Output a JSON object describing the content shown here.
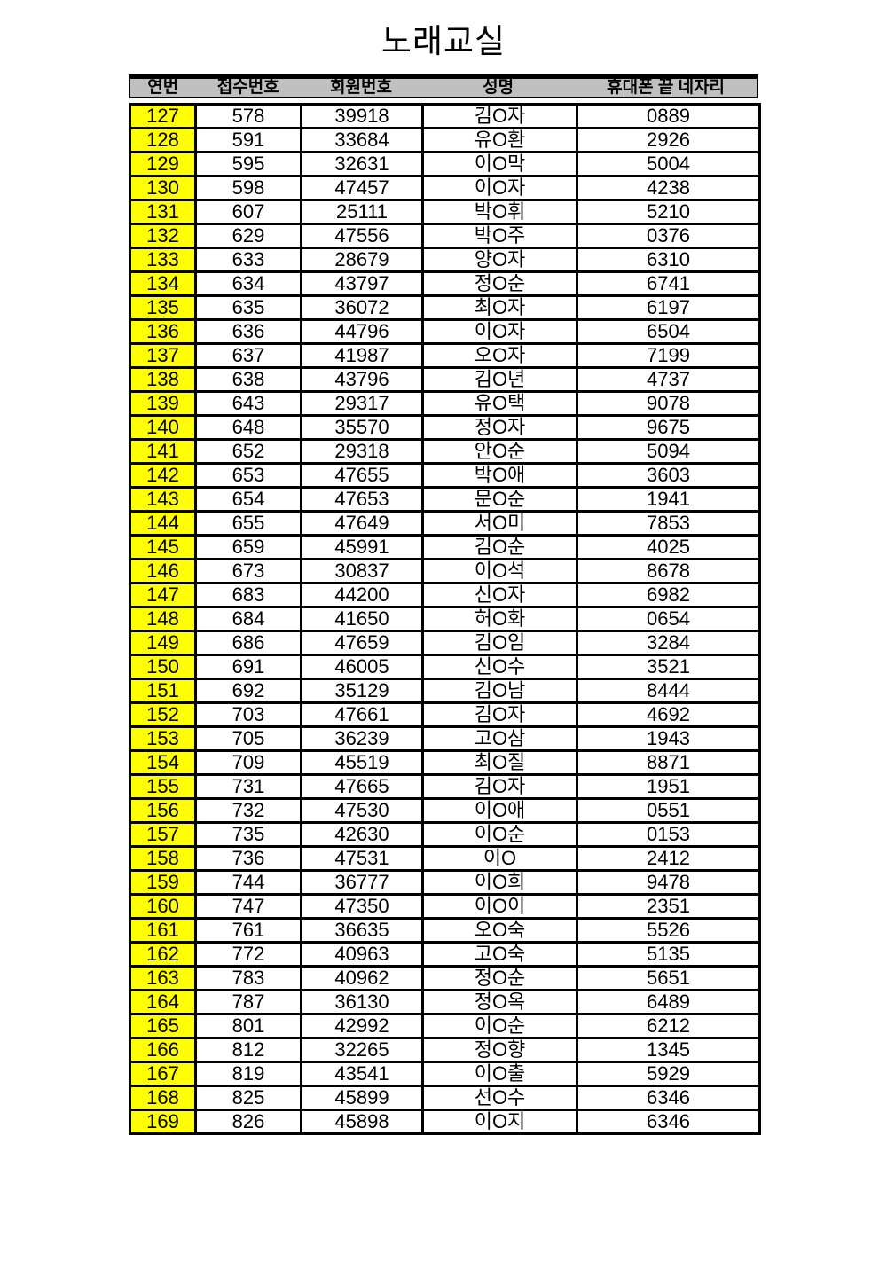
{
  "title": "노래교실",
  "colors": {
    "header_bg": "#c0c0c0",
    "serial_bg": "#ffff00",
    "border": "#000000",
    "text": "#000000"
  },
  "table": {
    "headers": [
      "연번",
      "접수번호",
      "회원번호",
      "성명",
      "휴대폰 끝 네자리"
    ],
    "rows": [
      {
        "no": "127",
        "receipt": "578",
        "member": "39918",
        "name": "김O자",
        "phone4": "0889"
      },
      {
        "no": "128",
        "receipt": "591",
        "member": "33684",
        "name": "유O환",
        "phone4": "2926"
      },
      {
        "no": "129",
        "receipt": "595",
        "member": "32631",
        "name": "이O막",
        "phone4": "5004"
      },
      {
        "no": "130",
        "receipt": "598",
        "member": "47457",
        "name": "이O자",
        "phone4": "4238"
      },
      {
        "no": "131",
        "receipt": "607",
        "member": "25111",
        "name": "박O휘",
        "phone4": "5210"
      },
      {
        "no": "132",
        "receipt": "629",
        "member": "47556",
        "name": "박O주",
        "phone4": "0376"
      },
      {
        "no": "133",
        "receipt": "633",
        "member": "28679",
        "name": "양O자",
        "phone4": "6310"
      },
      {
        "no": "134",
        "receipt": "634",
        "member": "43797",
        "name": "정O순",
        "phone4": "6741"
      },
      {
        "no": "135",
        "receipt": "635",
        "member": "36072",
        "name": "최O자",
        "phone4": "6197"
      },
      {
        "no": "136",
        "receipt": "636",
        "member": "44796",
        "name": "이O자",
        "phone4": "6504"
      },
      {
        "no": "137",
        "receipt": "637",
        "member": "41987",
        "name": "오O자",
        "phone4": "7199"
      },
      {
        "no": "138",
        "receipt": "638",
        "member": "43796",
        "name": "김O년",
        "phone4": "4737"
      },
      {
        "no": "139",
        "receipt": "643",
        "member": "29317",
        "name": "유O택",
        "phone4": "9078"
      },
      {
        "no": "140",
        "receipt": "648",
        "member": "35570",
        "name": "정O자",
        "phone4": "9675"
      },
      {
        "no": "141",
        "receipt": "652",
        "member": "29318",
        "name": "안O순",
        "phone4": "5094"
      },
      {
        "no": "142",
        "receipt": "653",
        "member": "47655",
        "name": "박O애",
        "phone4": "3603"
      },
      {
        "no": "143",
        "receipt": "654",
        "member": "47653",
        "name": "문O순",
        "phone4": "1941"
      },
      {
        "no": "144",
        "receipt": "655",
        "member": "47649",
        "name": "서O미",
        "phone4": "7853"
      },
      {
        "no": "145",
        "receipt": "659",
        "member": "45991",
        "name": "김O순",
        "phone4": "4025"
      },
      {
        "no": "146",
        "receipt": "673",
        "member": "30837",
        "name": "이O석",
        "phone4": "8678"
      },
      {
        "no": "147",
        "receipt": "683",
        "member": "44200",
        "name": "신O자",
        "phone4": "6982"
      },
      {
        "no": "148",
        "receipt": "684",
        "member": "41650",
        "name": "허O화",
        "phone4": "0654"
      },
      {
        "no": "149",
        "receipt": "686",
        "member": "47659",
        "name": "김O임",
        "phone4": "3284"
      },
      {
        "no": "150",
        "receipt": "691",
        "member": "46005",
        "name": "신O수",
        "phone4": "3521"
      },
      {
        "no": "151",
        "receipt": "692",
        "member": "35129",
        "name": "김O남",
        "phone4": "8444"
      },
      {
        "no": "152",
        "receipt": "703",
        "member": "47661",
        "name": "김O자",
        "phone4": "4692"
      },
      {
        "no": "153",
        "receipt": "705",
        "member": "36239",
        "name": "고O삼",
        "phone4": "1943"
      },
      {
        "no": "154",
        "receipt": "709",
        "member": "45519",
        "name": "최O질",
        "phone4": "8871"
      },
      {
        "no": "155",
        "receipt": "731",
        "member": "47665",
        "name": "김O자",
        "phone4": "1951"
      },
      {
        "no": "156",
        "receipt": "732",
        "member": "47530",
        "name": "이O애",
        "phone4": "0551"
      },
      {
        "no": "157",
        "receipt": "735",
        "member": "42630",
        "name": "이O순",
        "phone4": "0153"
      },
      {
        "no": "158",
        "receipt": "736",
        "member": "47531",
        "name": "이O",
        "phone4": "2412"
      },
      {
        "no": "159",
        "receipt": "744",
        "member": "36777",
        "name": "이O희",
        "phone4": "9478"
      },
      {
        "no": "160",
        "receipt": "747",
        "member": "47350",
        "name": "이O이",
        "phone4": "2351"
      },
      {
        "no": "161",
        "receipt": "761",
        "member": "36635",
        "name": "오O숙",
        "phone4": "5526"
      },
      {
        "no": "162",
        "receipt": "772",
        "member": "40963",
        "name": "고O숙",
        "phone4": "5135"
      },
      {
        "no": "163",
        "receipt": "783",
        "member": "40962",
        "name": "정O순",
        "phone4": "5651"
      },
      {
        "no": "164",
        "receipt": "787",
        "member": "36130",
        "name": "정O옥",
        "phone4": "6489"
      },
      {
        "no": "165",
        "receipt": "801",
        "member": "42992",
        "name": "이O순",
        "phone4": "6212"
      },
      {
        "no": "166",
        "receipt": "812",
        "member": "32265",
        "name": "정O향",
        "phone4": "1345"
      },
      {
        "no": "167",
        "receipt": "819",
        "member": "43541",
        "name": "이O출",
        "phone4": "5929"
      },
      {
        "no": "168",
        "receipt": "825",
        "member": "45899",
        "name": "선O수",
        "phone4": "6346"
      },
      {
        "no": "169",
        "receipt": "826",
        "member": "45898",
        "name": "이O지",
        "phone4": "6346"
      }
    ]
  }
}
